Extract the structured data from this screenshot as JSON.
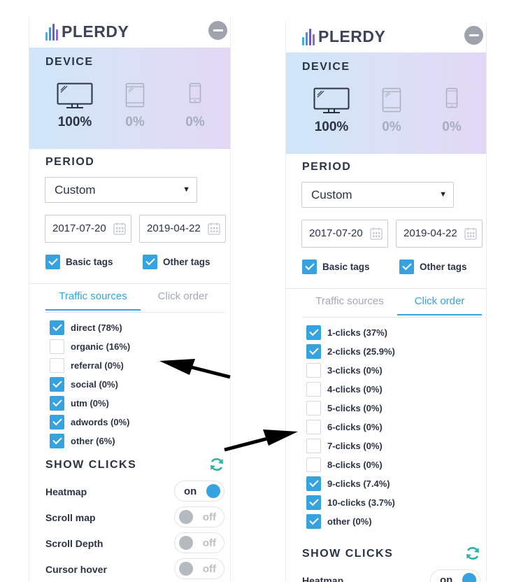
{
  "brand": {
    "name": "PLERDY",
    "bar_colors": [
      "#3fb0e4",
      "#4a90d9",
      "#6a5acd",
      "#8a6bd3",
      "#5a7fe0"
    ]
  },
  "colors": {
    "accent": "#36a2df",
    "refresh": "#2bb5a3"
  },
  "panels": {
    "left": {
      "device": {
        "title": "DEVICE",
        "items": [
          {
            "icon": "desktop-icon",
            "pct": "100%",
            "active": true
          },
          {
            "icon": "tablet-icon",
            "pct": "0%",
            "active": false
          },
          {
            "icon": "mobile-icon",
            "pct": "0%",
            "active": false
          }
        ]
      },
      "period": {
        "title": "PERIOD",
        "selected": "Custom",
        "start_date": "2017-07-20",
        "end_date": "2019-04-22",
        "basic_tags": {
          "label": "Basic tags",
          "checked": true
        },
        "other_tags": {
          "label": "Other tags",
          "checked": true
        }
      },
      "tabs": [
        {
          "label": "Traffic sources",
          "active": true
        },
        {
          "label": "Click order",
          "active": false
        }
      ],
      "list": [
        {
          "label": "direct (78%)",
          "checked": true
        },
        {
          "label": "organic (16%)",
          "checked": false
        },
        {
          "label": "referral (0%)",
          "checked": false
        },
        {
          "label": "social (0%)",
          "checked": true
        },
        {
          "label": "utm (0%)",
          "checked": true
        },
        {
          "label": "adwords (0%)",
          "checked": true
        },
        {
          "label": "other (6%)",
          "checked": true
        }
      ],
      "show_clicks": {
        "title": "SHOW CLICKS",
        "toggles": [
          {
            "label": "Heatmap",
            "state": "on"
          },
          {
            "label": "Scroll map",
            "state": "off"
          },
          {
            "label": "Scroll Depth",
            "state": "off"
          },
          {
            "label": "Cursor hover",
            "state": "off"
          }
        ]
      }
    },
    "right": {
      "device": {
        "title": "DEVICE",
        "items": [
          {
            "icon": "desktop-icon",
            "pct": "100%",
            "active": true
          },
          {
            "icon": "tablet-icon",
            "pct": "0%",
            "active": false
          },
          {
            "icon": "mobile-icon",
            "pct": "0%",
            "active": false
          }
        ]
      },
      "period": {
        "title": "PERIOD",
        "selected": "Custom",
        "start_date": "2017-07-20",
        "end_date": "2019-04-22",
        "basic_tags": {
          "label": "Basic tags",
          "checked": true
        },
        "other_tags": {
          "label": "Other tags",
          "checked": true
        }
      },
      "tabs": [
        {
          "label": "Traffic sources",
          "active": false
        },
        {
          "label": "Click order",
          "active": true
        }
      ],
      "list": [
        {
          "label": "1-clicks (37%)",
          "checked": true
        },
        {
          "label": "2-clicks (25.9%)",
          "checked": true
        },
        {
          "label": "3-clicks (0%)",
          "checked": false
        },
        {
          "label": "4-clicks (0%)",
          "checked": false
        },
        {
          "label": "5-clicks (0%)",
          "checked": false
        },
        {
          "label": "6-clicks (0%)",
          "checked": false
        },
        {
          "label": "7-clicks (0%)",
          "checked": false
        },
        {
          "label": "8-clicks (0%)",
          "checked": false
        },
        {
          "label": "9-clicks (7.4%)",
          "checked": true
        },
        {
          "label": "10-clicks (3.7%)",
          "checked": true
        },
        {
          "label": "other (0%)",
          "checked": true
        }
      ],
      "show_clicks": {
        "title": "SHOW CLICKS",
        "toggles": [
          {
            "label": "Heatmap",
            "state": "on"
          }
        ]
      }
    }
  }
}
